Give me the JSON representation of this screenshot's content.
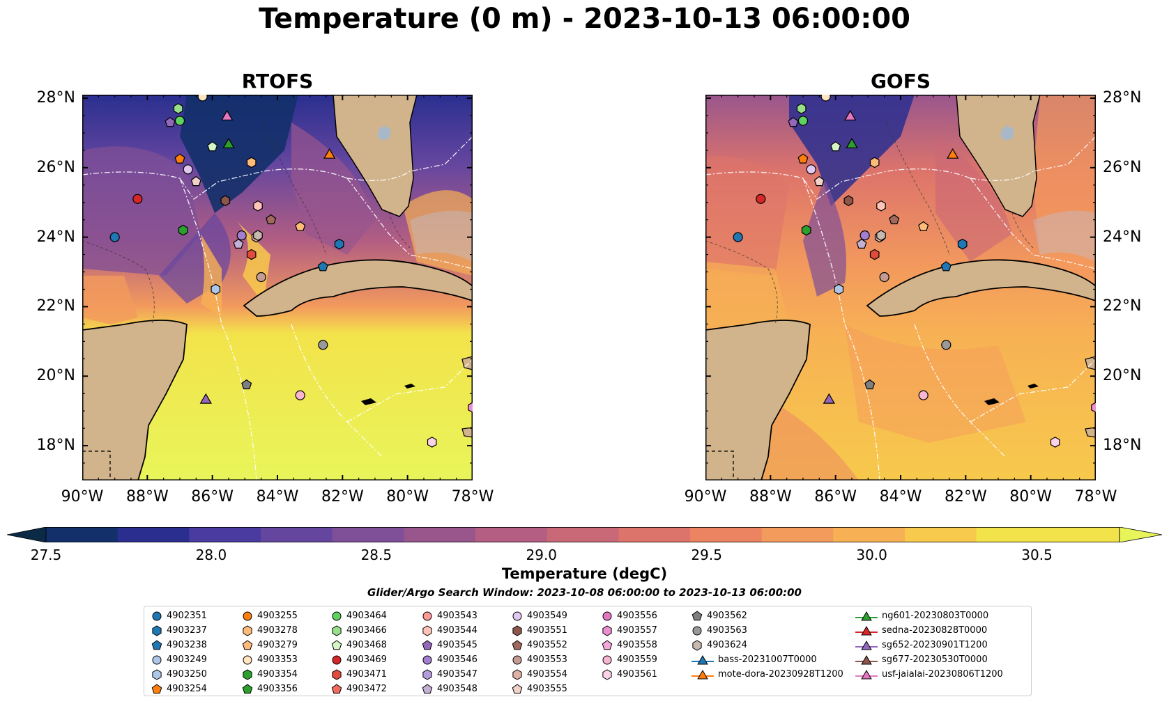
{
  "title": "Temperature (0 m) - 2023-10-13 06:00:00",
  "panels": [
    {
      "name": "RTOFS"
    },
    {
      "name": "GOFS"
    }
  ],
  "lon_labels": [
    "90°W",
    "88°W",
    "86°W",
    "84°W",
    "82°W",
    "80°W",
    "78°W"
  ],
  "lat_labels": [
    "28°N",
    "26°N",
    "24°N",
    "22°N",
    "20°N",
    "18°N"
  ],
  "colorbar": {
    "title": "Temperature (degC)",
    "min": 27.5,
    "max": 30.75,
    "step": 0.25,
    "tick_labels": [
      "27.5",
      "28.0",
      "28.5",
      "29.0",
      "29.5",
      "30.0",
      "30.5"
    ],
    "colors": [
      "#0b2a45",
      "#13306a",
      "#2a2f8f",
      "#4a3ba0",
      "#65469f",
      "#7f4f97",
      "#99568d",
      "#b35e82",
      "#c96877",
      "#dd746b",
      "#ec8462",
      "#f39a5d",
      "#f7b154",
      "#f7c94c",
      "#f3e34b",
      "#e8f55a"
    ]
  },
  "search_window": "Glider/Argo Search Window: 2023-10-08 06:00:00 to 2023-10-13 06:00:00",
  "legend": [
    {
      "label": "4902351",
      "shape": "circle",
      "color": "#1f77b4"
    },
    {
      "label": "4903237",
      "shape": "hexagon",
      "color": "#1f77b4"
    },
    {
      "label": "4903238",
      "shape": "pentagon",
      "color": "#1f77b4"
    },
    {
      "label": "4903249",
      "shape": "circle",
      "color": "#aec7e8"
    },
    {
      "label": "4903250",
      "shape": "hexagon",
      "color": "#aec7e8"
    },
    {
      "label": "4903254",
      "shape": "pentagon",
      "color": "#ff7f0e"
    },
    {
      "label": "4903255",
      "shape": "circle",
      "color": "#ff7f0e"
    },
    {
      "label": "4903278",
      "shape": "hexagon",
      "color": "#ffbb78"
    },
    {
      "label": "4903279",
      "shape": "pentagon",
      "color": "#ffbb78"
    },
    {
      "label": "4903353",
      "shape": "circle",
      "color": "#ffe5c0"
    },
    {
      "label": "4903354",
      "shape": "hexagon",
      "color": "#2ca02c"
    },
    {
      "label": "4903356",
      "shape": "pentagon",
      "color": "#2ca02c"
    },
    {
      "label": "4903464",
      "shape": "circle",
      "color": "#5fd35f"
    },
    {
      "label": "4903466",
      "shape": "hexagon",
      "color": "#98df8a"
    },
    {
      "label": "4903468",
      "shape": "pentagon",
      "color": "#d6f5c6"
    },
    {
      "label": "4903469",
      "shape": "circle",
      "color": "#d62728"
    },
    {
      "label": "4903471",
      "shape": "hexagon",
      "color": "#e04b3c"
    },
    {
      "label": "4903472",
      "shape": "pentagon",
      "color": "#f06b5e"
    },
    {
      "label": "4903543",
      "shape": "circle",
      "color": "#ff9896"
    },
    {
      "label": "4903544",
      "shape": "hexagon",
      "color": "#ffc4b8"
    },
    {
      "label": "4903545",
      "shape": "pentagon",
      "color": "#9467bd"
    },
    {
      "label": "4903546",
      "shape": "circle",
      "color": "#a37fd0"
    },
    {
      "label": "4903547",
      "shape": "hexagon",
      "color": "#b49ddc"
    },
    {
      "label": "4903548",
      "shape": "pentagon",
      "color": "#c5b0d5"
    },
    {
      "label": "4903549",
      "shape": "circle",
      "color": "#e0c8f0"
    },
    {
      "label": "4903551",
      "shape": "hexagon",
      "color": "#8c564b"
    },
    {
      "label": "4903552",
      "shape": "pentagon",
      "color": "#a0695c"
    },
    {
      "label": "4903553",
      "shape": "circle",
      "color": "#c49c94"
    },
    {
      "label": "4903554",
      "shape": "hexagon",
      "color": "#e0b0a4"
    },
    {
      "label": "4903555",
      "shape": "pentagon",
      "color": "#f2d2c8"
    },
    {
      "label": "4903556",
      "shape": "circle",
      "color": "#e377c2"
    },
    {
      "label": "4903557",
      "shape": "hexagon",
      "color": "#ec8fd0"
    },
    {
      "label": "4903558",
      "shape": "pentagon",
      "color": "#f5a8dc"
    },
    {
      "label": "4903559",
      "shape": "circle",
      "color": "#f7b6d2"
    },
    {
      "label": "4903561",
      "shape": "hexagon",
      "color": "#fcd2e8"
    },
    {
      "label": "4903562",
      "shape": "pentagon",
      "color": "#7f7f7f"
    },
    {
      "label": "4903563",
      "shape": "circle",
      "color": "#999999"
    },
    {
      "label": "4903624",
      "shape": "hexagon",
      "color": "#c7b8b0"
    },
    {
      "label": "bass-20231007T0000",
      "shape": "triangle",
      "color": "#1f77b4"
    },
    {
      "label": "mote-dora-20230928T1200",
      "shape": "triangle",
      "color": "#ff7f0e"
    },
    {
      "label": "ng601-20230803T0000",
      "shape": "triangle",
      "color": "#2ca02c"
    },
    {
      "label": "sedna-20230828T0000",
      "shape": "triangle",
      "color": "#d62728"
    },
    {
      "label": "sg652-20230901T1200",
      "shape": "triangle",
      "color": "#9467bd"
    },
    {
      "label": "sg677-20230530T0000",
      "shape": "triangle",
      "color": "#8c564b"
    },
    {
      "label": "usf-jaialai-20230806T1200",
      "shape": "triangle",
      "color": "#e377c2"
    }
  ],
  "markers": [
    {
      "label": "4902351",
      "lon": -89.0,
      "lat": 24.0
    },
    {
      "label": "4903237",
      "lon": -82.1,
      "lat": 23.8
    },
    {
      "label": "4903238",
      "lon": -82.6,
      "lat": 23.15
    },
    {
      "label": "4903250",
      "lon": -85.9,
      "lat": 22.5
    },
    {
      "label": "4903254",
      "lon": -87.0,
      "lat": 26.25
    },
    {
      "label": "4903278",
      "lon": -84.8,
      "lat": 26.15
    },
    {
      "label": "4903279",
      "lon": -83.3,
      "lat": 24.3
    },
    {
      "label": "4903353",
      "lon": -86.3,
      "lat": 28.05
    },
    {
      "label": "4903354",
      "lon": -86.9,
      "lat": 24.2
    },
    {
      "label": "4903464",
      "lon": -87.0,
      "lat": 27.35
    },
    {
      "label": "4903466",
      "lon": -87.05,
      "lat": 27.7
    },
    {
      "label": "4903468",
      "lon": -86.0,
      "lat": 26.6
    },
    {
      "label": "4903469",
      "lon": -88.3,
      "lat": 25.1
    },
    {
      "label": "4903471",
      "lon": -84.8,
      "lat": 23.5
    },
    {
      "label": "4903544",
      "lon": -84.6,
      "lat": 24.9
    },
    {
      "label": "4903545",
      "lon": -87.3,
      "lat": 27.3
    },
    {
      "label": "4903546",
      "lon": -85.1,
      "lat": 24.05
    },
    {
      "label": "4903548",
      "lon": -85.2,
      "lat": 23.8
    },
    {
      "label": "4903549",
      "lon": -86.75,
      "lat": 25.95
    },
    {
      "label": "4903551",
      "lon": -85.6,
      "lat": 25.05
    },
    {
      "label": "4903552",
      "lon": -84.2,
      "lat": 24.5
    },
    {
      "label": "4903553",
      "lon": -84.5,
      "lat": 22.85
    },
    {
      "label": "4903554",
      "lon": -84.65,
      "lat": 24.0
    },
    {
      "label": "4903555",
      "lon": -86.5,
      "lat": 25.6
    },
    {
      "label": "4903557",
      "lon": -78.0,
      "lat": 19.1
    },
    {
      "label": "4903559",
      "lon": -83.3,
      "lat": 19.45
    },
    {
      "label": "4903561",
      "lon": -79.25,
      "lat": 18.1
    },
    {
      "label": "4903562",
      "lon": -84.95,
      "lat": 19.75
    },
    {
      "label": "4903563",
      "lon": -82.6,
      "lat": 20.9
    },
    {
      "label": "4903624",
      "lon": -84.6,
      "lat": 24.05
    },
    {
      "label": "mote-dora-20230928T1200",
      "lon": -82.4,
      "lat": 26.4
    },
    {
      "label": "ng601-20230803T0000",
      "lon": -85.5,
      "lat": 26.7
    },
    {
      "label": "sg652-20230901T1200",
      "lon": -86.2,
      "lat": 19.35
    },
    {
      "label": "usf-jaialai-20230806T1200",
      "lon": -85.55,
      "lat": 27.5
    }
  ]
}
